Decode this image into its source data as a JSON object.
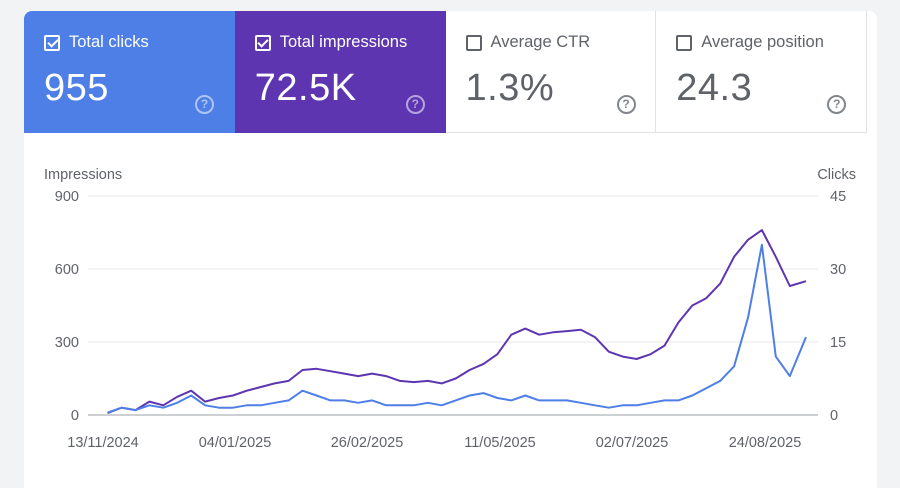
{
  "metrics": [
    {
      "label": "Total clicks",
      "value": "955",
      "checked": true
    },
    {
      "label": "Total impressions",
      "value": "72.5K",
      "checked": true
    },
    {
      "label": "Average CTR",
      "value": "1.3%",
      "checked": false
    },
    {
      "label": "Average position",
      "value": "24.3",
      "checked": false
    }
  ],
  "help_glyph": "?",
  "colors": {
    "clicks": "#4e7fe7",
    "impressions": "#5e35b1",
    "grid": "#e8eaed",
    "text": "#5f6368"
  },
  "chart_data": {
    "type": "line",
    "left_axis_label": "Impressions",
    "right_axis_label": "Clicks",
    "left_ticks": [
      "900",
      "600",
      "300",
      "0"
    ],
    "right_ticks": [
      "45",
      "30",
      "15",
      "0"
    ],
    "ylim_left": [
      0,
      900
    ],
    "ylim_right": [
      0,
      45
    ],
    "x_ticks": [
      "13/11/2024",
      "04/01/2025",
      "26/02/2025",
      "11/05/2025",
      "02/07/2025",
      "24/08/2025"
    ],
    "x_start": "2024-11-13",
    "x_end": "2025-09-12",
    "grid": true,
    "series": [
      {
        "name": "Impressions",
        "axis": "left",
        "points": [
          [
            "2024-11-15",
            8
          ],
          [
            "2024-11-21",
            30
          ],
          [
            "2024-11-27",
            20
          ],
          [
            "2024-12-03",
            55
          ],
          [
            "2024-12-09",
            40
          ],
          [
            "2024-12-15",
            75
          ],
          [
            "2024-12-21",
            100
          ],
          [
            "2024-12-27",
            55
          ],
          [
            "2025-01-02",
            70
          ],
          [
            "2025-01-08",
            80
          ],
          [
            "2025-01-14",
            100
          ],
          [
            "2025-01-20",
            115
          ],
          [
            "2025-01-26",
            130
          ],
          [
            "2025-02-01",
            140
          ],
          [
            "2025-02-07",
            185
          ],
          [
            "2025-02-13",
            190
          ],
          [
            "2025-02-19",
            180
          ],
          [
            "2025-02-25",
            170
          ],
          [
            "2025-03-03",
            160
          ],
          [
            "2025-03-09",
            170
          ],
          [
            "2025-03-15",
            160
          ],
          [
            "2025-03-21",
            140
          ],
          [
            "2025-03-27",
            135
          ],
          [
            "2025-04-02",
            140
          ],
          [
            "2025-04-08",
            130
          ],
          [
            "2025-04-14",
            150
          ],
          [
            "2025-04-20",
            185
          ],
          [
            "2025-04-26",
            210
          ],
          [
            "2025-05-02",
            250
          ],
          [
            "2025-05-08",
            330
          ],
          [
            "2025-05-14",
            355
          ],
          [
            "2025-05-20",
            330
          ],
          [
            "2025-05-26",
            340
          ],
          [
            "2025-06-01",
            345
          ],
          [
            "2025-06-07",
            350
          ],
          [
            "2025-06-13",
            320
          ],
          [
            "2025-06-19",
            260
          ],
          [
            "2025-06-25",
            240
          ],
          [
            "2025-07-01",
            230
          ],
          [
            "2025-07-07",
            250
          ],
          [
            "2025-07-13",
            285
          ],
          [
            "2025-07-19",
            380
          ],
          [
            "2025-07-25",
            450
          ],
          [
            "2025-07-31",
            480
          ],
          [
            "2025-08-06",
            540
          ],
          [
            "2025-08-12",
            650
          ],
          [
            "2025-08-18",
            720
          ],
          [
            "2025-08-24",
            760
          ],
          [
            "2025-08-30",
            650
          ],
          [
            "2025-09-05",
            530
          ],
          [
            "2025-09-12",
            550
          ]
        ]
      },
      {
        "name": "Clicks",
        "axis": "right",
        "points": [
          [
            "2024-11-15",
            0.5
          ],
          [
            "2024-11-21",
            1.5
          ],
          [
            "2024-11-27",
            1
          ],
          [
            "2024-12-03",
            2
          ],
          [
            "2024-12-09",
            1.5
          ],
          [
            "2024-12-15",
            2.5
          ],
          [
            "2024-12-21",
            4
          ],
          [
            "2024-12-27",
            2
          ],
          [
            "2025-01-02",
            1.5
          ],
          [
            "2025-01-08",
            1.5
          ],
          [
            "2025-01-14",
            2
          ],
          [
            "2025-01-20",
            2
          ],
          [
            "2025-01-26",
            2.5
          ],
          [
            "2025-02-01",
            3
          ],
          [
            "2025-02-07",
            5
          ],
          [
            "2025-02-13",
            4
          ],
          [
            "2025-02-19",
            3
          ],
          [
            "2025-02-25",
            3
          ],
          [
            "2025-03-03",
            2.5
          ],
          [
            "2025-03-09",
            3
          ],
          [
            "2025-03-15",
            2
          ],
          [
            "2025-03-21",
            2
          ],
          [
            "2025-03-27",
            2
          ],
          [
            "2025-04-02",
            2.5
          ],
          [
            "2025-04-08",
            2
          ],
          [
            "2025-04-14",
            3
          ],
          [
            "2025-04-20",
            4
          ],
          [
            "2025-04-26",
            4.5
          ],
          [
            "2025-05-02",
            3.5
          ],
          [
            "2025-05-08",
            3
          ],
          [
            "2025-05-14",
            4
          ],
          [
            "2025-05-20",
            3
          ],
          [
            "2025-05-26",
            3
          ],
          [
            "2025-06-01",
            3
          ],
          [
            "2025-06-07",
            2.5
          ],
          [
            "2025-06-13",
            2
          ],
          [
            "2025-06-19",
            1.5
          ],
          [
            "2025-06-25",
            2
          ],
          [
            "2025-07-01",
            2
          ],
          [
            "2025-07-07",
            2.5
          ],
          [
            "2025-07-13",
            3
          ],
          [
            "2025-07-19",
            3
          ],
          [
            "2025-07-25",
            4
          ],
          [
            "2025-07-31",
            5.5
          ],
          [
            "2025-08-06",
            7
          ],
          [
            "2025-08-12",
            10
          ],
          [
            "2025-08-18",
            20
          ],
          [
            "2025-08-24",
            35
          ],
          [
            "2025-08-30",
            12
          ],
          [
            "2025-09-05",
            8
          ],
          [
            "2025-09-12",
            16
          ]
        ]
      }
    ]
  }
}
